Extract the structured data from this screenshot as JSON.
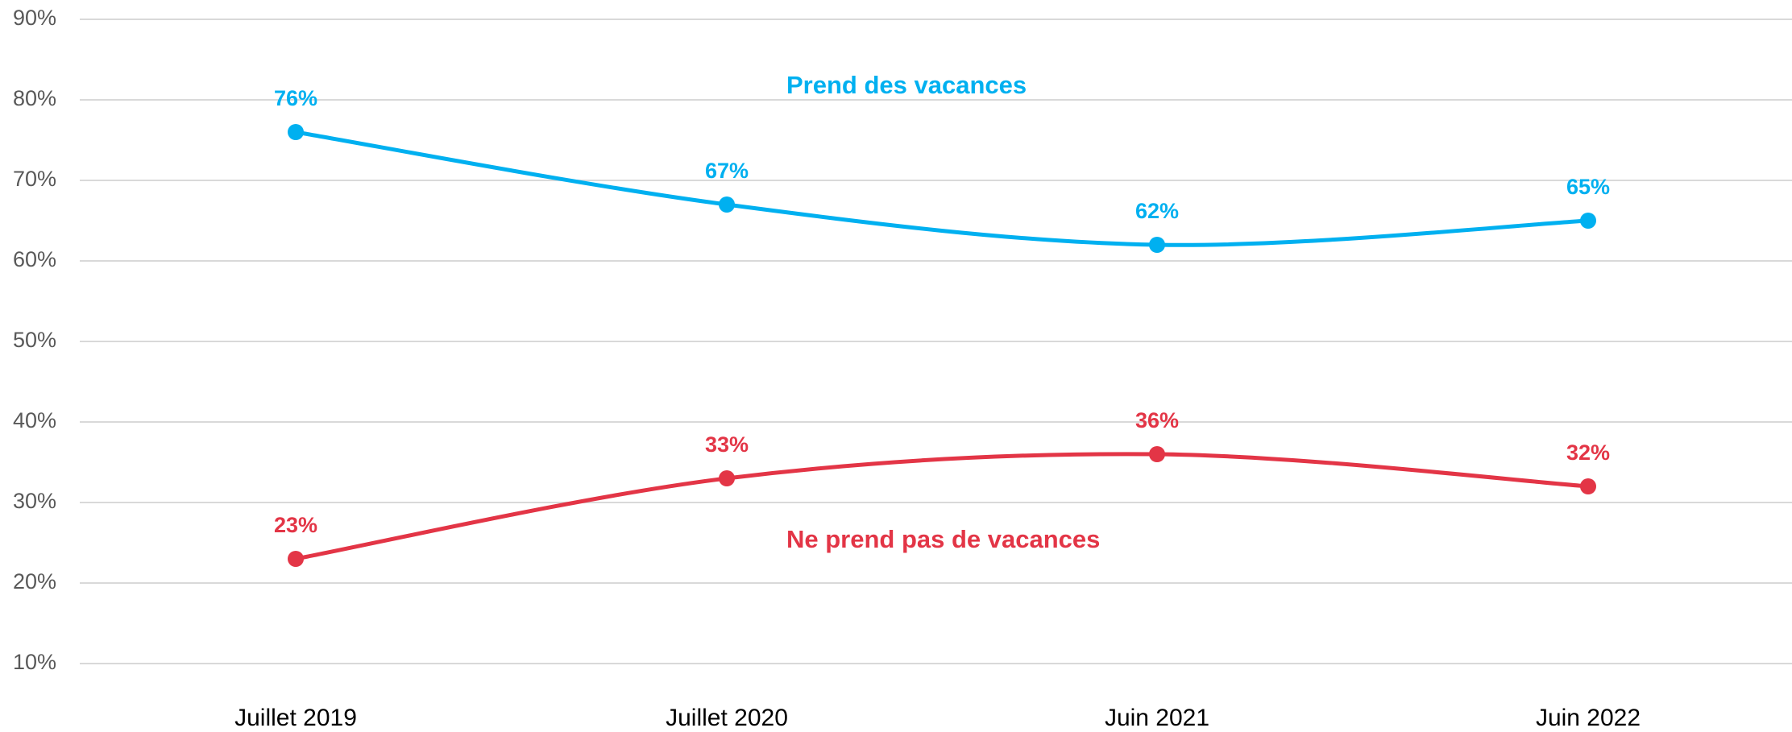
{
  "chart_data": {
    "type": "line",
    "categories": [
      "Juillet 2019",
      "Juillet 2020",
      "Juin 2021",
      "Juin 2022"
    ],
    "series": [
      {
        "name": "Prend des vacances",
        "color": "#00b0f0",
        "values": [
          76,
          67,
          62,
          65
        ],
        "value_labels": [
          "76%",
          "67%",
          "62%",
          "65%"
        ]
      },
      {
        "name": "Ne prend pas de vacances",
        "color": "#e33546",
        "values": [
          23,
          33,
          36,
          32
        ],
        "value_labels": [
          "23%",
          "33%",
          "36%",
          "32%"
        ]
      }
    ],
    "ylim": [
      10,
      90
    ],
    "yticks": [
      {
        "value": 10,
        "label": "10%"
      },
      {
        "value": 20,
        "label": "20%"
      },
      {
        "value": 30,
        "label": "30%"
      },
      {
        "value": 40,
        "label": "40%"
      },
      {
        "value": 50,
        "label": "50%"
      },
      {
        "value": 60,
        "label": "60%"
      },
      {
        "value": 70,
        "label": "70%"
      },
      {
        "value": 80,
        "label": "80%"
      },
      {
        "value": 90,
        "label": "90%"
      }
    ],
    "grid": true,
    "smooth": true
  }
}
